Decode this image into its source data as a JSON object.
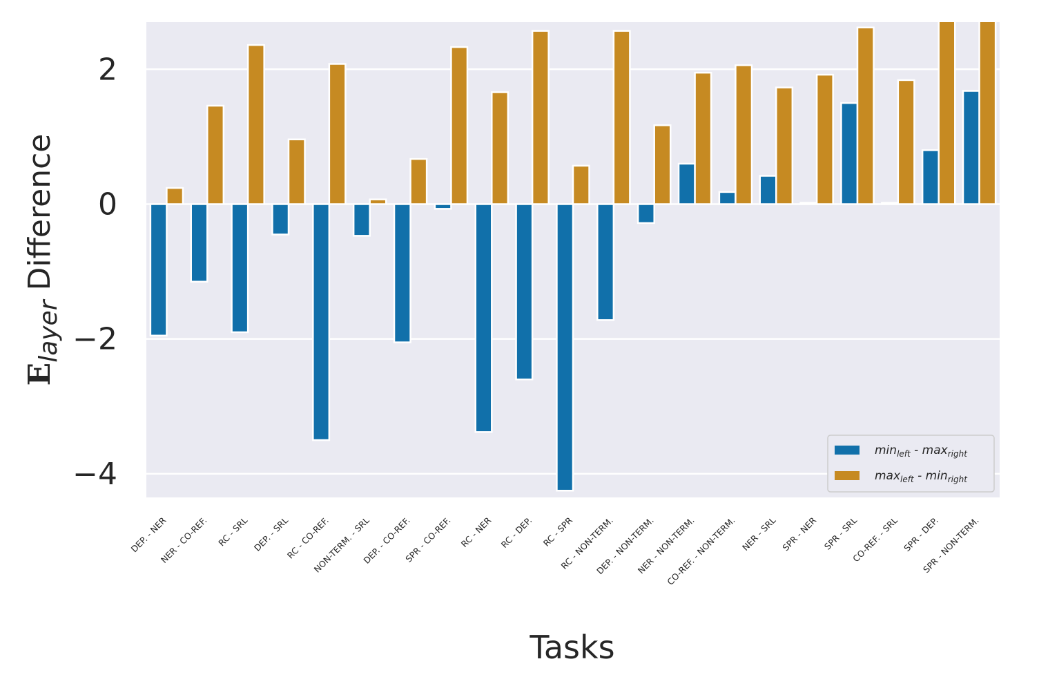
{
  "chart_data": {
    "type": "bar",
    "title": "",
    "xlabel": "Tasks",
    "ylabel_main": "E",
    "ylabel_sub": "layer",
    "ylabel_rest": " Difference",
    "ylim": [
      -4.35,
      2.7
    ],
    "yticks": [
      -4,
      -2,
      0,
      2
    ],
    "ytick_labels": [
      "−4",
      "−2",
      "0",
      "2"
    ],
    "categories": [
      "DEP. - NER",
      "NER - CO-REF.",
      "RC - SRL",
      "DEP. - SRL",
      "RC - CO-REF.",
      "NON-TERM. - SRL",
      "DEP. - CO-REF.",
      "SPR - CO-REF.",
      "RC - NER",
      "RC - DEP.",
      "RC - SPR",
      "RC - NON-TERM.",
      "DEP. - NON-TERM.",
      "NER - NON-TERM.",
      "CO-REF. - NON-TERM.",
      "NER - SRL",
      "SPR - NER",
      "SPR - SRL",
      "CO-REF. - SRL",
      "SPR - DEP.",
      "SPR - NON-TERM."
    ],
    "series": [
      {
        "name": "min_left - max_right",
        "legend_a": "min",
        "legend_a_sub": "left",
        "legend_mid": " - max",
        "legend_b_sub": "right",
        "color": "#1170aa",
        "values": [
          -1.95,
          -1.15,
          -1.9,
          -0.45,
          -3.5,
          -0.47,
          -2.05,
          -0.07,
          -3.38,
          -2.6,
          -4.25,
          -1.72,
          -0.28,
          0.6,
          0.18,
          0.42,
          0.02,
          1.5,
          0.02,
          0.8,
          1.68
        ]
      },
      {
        "name": "max_left - min_right",
        "legend_a": "max",
        "legend_a_sub": "left",
        "legend_mid": " - min",
        "legend_b_sub": "right",
        "color": "#c68a22",
        "values": [
          0.24,
          1.46,
          2.36,
          0.96,
          2.08,
          0.07,
          0.67,
          2.33,
          1.66,
          2.57,
          0.57,
          2.57,
          1.17,
          1.95,
          2.06,
          1.73,
          1.92,
          2.62,
          1.84,
          2.72,
          2.72
        ]
      }
    ],
    "legend_position": "lower-right",
    "grid": true
  }
}
